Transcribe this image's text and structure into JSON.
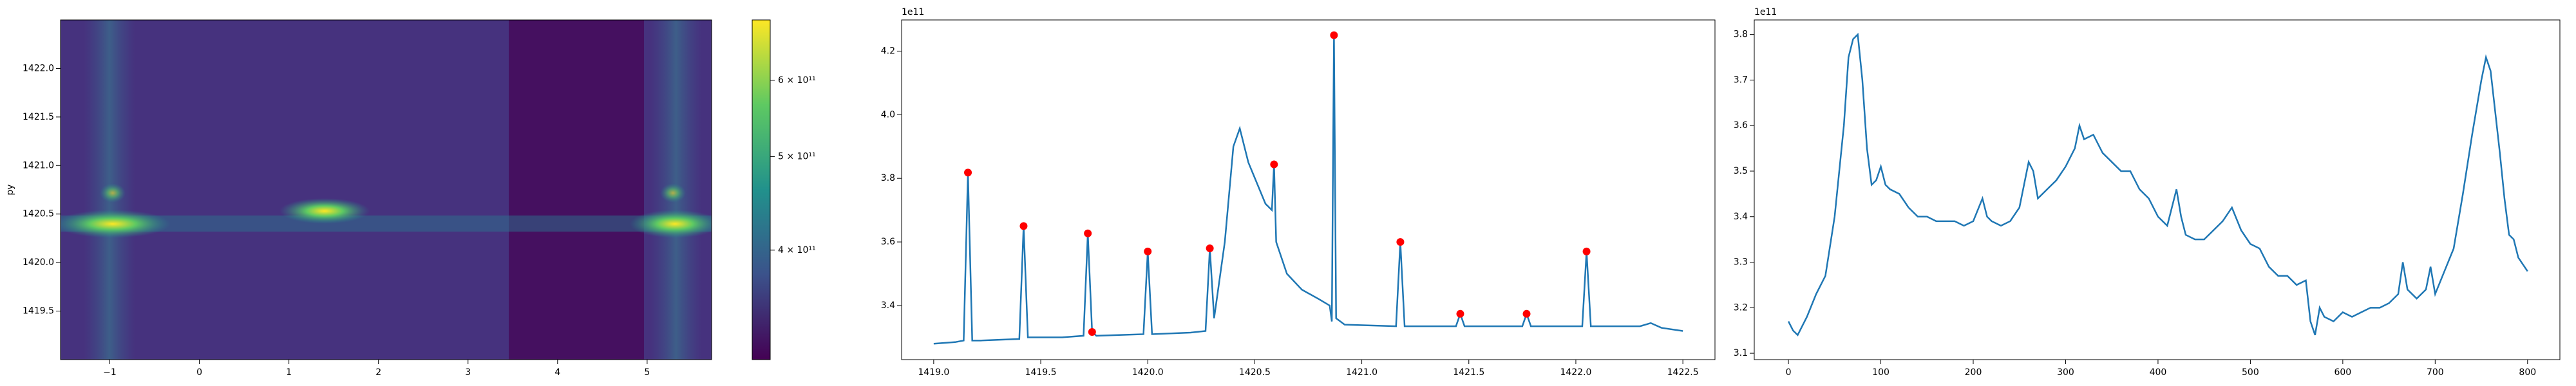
{
  "chart_data": [
    {
      "type": "heatmap",
      "ylabel": "py",
      "xlim": [
        -1.55,
        5.72
      ],
      "ylim": [
        1419.0,
        1422.5
      ],
      "xticks": [
        {
          "value": -1,
          "label": "−1"
        },
        0,
        1,
        2,
        3,
        4,
        5
      ],
      "yticks": [
        {
          "value": 1419.5,
          "label": "1419.5"
        },
        {
          "value": 1420.0,
          "label": "1420.0"
        },
        {
          "value": 1420.5,
          "label": "1420.5"
        },
        {
          "value": 1421.0,
          "label": "1421.0"
        },
        {
          "value": 1421.5,
          "label": "1421.5"
        },
        {
          "value": 1422.0,
          "label": "1422.0"
        }
      ],
      "colorbar_log": true,
      "clim": [
        308000000000,
        693000000000
      ],
      "colorbar_ticks": [
        {
          "value": 400000000000,
          "label": "4 × 10¹¹"
        },
        {
          "value": 500000000000,
          "label": "5 × 10¹¹"
        },
        {
          "value": 600000000000,
          "label": "6 × 10¹¹"
        }
      ]
    },
    {
      "type": "line",
      "offset_label": "1e11",
      "color": "#1f77b4",
      "xlim": [
        1418.85,
        1422.65
      ],
      "ylim": [
        3.23,
        4.298
      ],
      "xticks": [
        {
          "value": 1419.0,
          "label": "1419.0"
        },
        {
          "value": 1419.5,
          "label": "1419.5"
        },
        {
          "value": 1420.0,
          "label": "1420.0"
        },
        {
          "value": 1420.5,
          "label": "1420.5"
        },
        {
          "value": 1421.0,
          "label": "1421.0"
        },
        {
          "value": 1421.5,
          "label": "1421.5"
        },
        {
          "value": 1422.0,
          "label": "1422.0"
        },
        {
          "value": 1422.5,
          "label": "1422.5"
        }
      ],
      "yticks": [
        3.4,
        3.6,
        3.8,
        {
          "value": 4.0,
          "label": "4.0"
        },
        4.2
      ],
      "x": [
        1419.0,
        1419.1,
        1419.14,
        1419.16,
        1419.18,
        1419.22,
        1419.4,
        1419.42,
        1419.44,
        1419.6,
        1419.7,
        1419.72,
        1419.74,
        1419.76,
        1419.98,
        1420.0,
        1420.02,
        1420.2,
        1420.27,
        1420.29,
        1420.31,
        1420.36,
        1420.4,
        1420.43,
        1420.47,
        1420.55,
        1420.58,
        1420.59,
        1420.6,
        1420.65,
        1420.72,
        1420.8,
        1420.85,
        1420.86,
        1420.87,
        1420.88,
        1420.92,
        1421.16,
        1421.18,
        1421.2,
        1421.44,
        1421.46,
        1421.48,
        1421.75,
        1421.77,
        1421.79,
        1422.03,
        1422.05,
        1422.07,
        1422.3,
        1422.35,
        1422.4,
        1422.5
      ],
      "values": [
        3.28,
        3.285,
        3.29,
        3.818,
        3.29,
        3.29,
        3.295,
        3.65,
        3.3,
        3.3,
        3.305,
        3.627,
        3.317,
        3.305,
        3.31,
        3.57,
        3.31,
        3.315,
        3.32,
        3.58,
        3.36,
        3.6,
        3.9,
        3.957,
        3.85,
        3.72,
        3.7,
        3.844,
        3.6,
        3.5,
        3.45,
        3.42,
        3.4,
        3.35,
        4.25,
        3.36,
        3.34,
        3.335,
        3.6,
        3.335,
        3.335,
        3.374,
        3.335,
        3.335,
        3.374,
        3.335,
        3.335,
        3.57,
        3.335,
        3.335,
        3.345,
        3.33,
        3.32
      ],
      "markers": {
        "color": "red",
        "x": [
          1419.16,
          1419.42,
          1419.72,
          1419.74,
          1420.0,
          1420.29,
          1420.59,
          1420.87,
          1421.18,
          1421.46,
          1421.77,
          1422.05
        ],
        "values": [
          3.818,
          3.65,
          3.627,
          3.317,
          3.57,
          3.58,
          3.844,
          4.25,
          3.6,
          3.374,
          3.374,
          3.57
        ]
      }
    },
    {
      "type": "line",
      "offset_label": "1e11",
      "color": "#1f77b4",
      "xlim": [
        -37,
        835
      ],
      "ylim": [
        3.086,
        3.832
      ],
      "xticks": [
        0,
        100,
        200,
        300,
        400,
        500,
        600,
        700,
        800
      ],
      "yticks": [
        3.1,
        3.2,
        3.3,
        3.4,
        3.5,
        3.6,
        3.7,
        3.8
      ],
      "x": [
        0,
        5,
        10,
        20,
        30,
        40,
        50,
        60,
        65,
        70,
        75,
        80,
        85,
        90,
        95,
        100,
        105,
        110,
        120,
        130,
        140,
        150,
        160,
        170,
        180,
        190,
        200,
        210,
        215,
        220,
        230,
        240,
        250,
        260,
        265,
        270,
        280,
        290,
        300,
        310,
        315,
        320,
        330,
        340,
        350,
        360,
        370,
        380,
        390,
        400,
        410,
        420,
        425,
        430,
        440,
        450,
        460,
        470,
        480,
        490,
        500,
        510,
        520,
        530,
        540,
        550,
        560,
        565,
        570,
        575,
        580,
        590,
        600,
        610,
        620,
        630,
        640,
        650,
        660,
        665,
        670,
        680,
        690,
        695,
        700,
        710,
        720,
        730,
        740,
        750,
        755,
        760,
        770,
        775,
        780,
        785,
        790,
        800
      ],
      "values": [
        3.17,
        3.15,
        3.14,
        3.18,
        3.23,
        3.27,
        3.4,
        3.6,
        3.75,
        3.79,
        3.8,
        3.7,
        3.55,
        3.47,
        3.48,
        3.51,
        3.47,
        3.46,
        3.45,
        3.42,
        3.4,
        3.4,
        3.39,
        3.39,
        3.39,
        3.38,
        3.39,
        3.44,
        3.4,
        3.39,
        3.38,
        3.39,
        3.42,
        3.52,
        3.5,
        3.44,
        3.46,
        3.48,
        3.51,
        3.55,
        3.6,
        3.57,
        3.58,
        3.54,
        3.52,
        3.5,
        3.5,
        3.46,
        3.44,
        3.4,
        3.38,
        3.46,
        3.4,
        3.36,
        3.35,
        3.35,
        3.37,
        3.39,
        3.42,
        3.37,
        3.34,
        3.33,
        3.29,
        3.27,
        3.27,
        3.25,
        3.26,
        3.17,
        3.14,
        3.2,
        3.18,
        3.17,
        3.19,
        3.18,
        3.19,
        3.2,
        3.2,
        3.21,
        3.23,
        3.3,
        3.24,
        3.22,
        3.24,
        3.29,
        3.23,
        3.28,
        3.33,
        3.45,
        3.58,
        3.7,
        3.75,
        3.72,
        3.54,
        3.44,
        3.36,
        3.35,
        3.31,
        3.28
      ]
    }
  ]
}
